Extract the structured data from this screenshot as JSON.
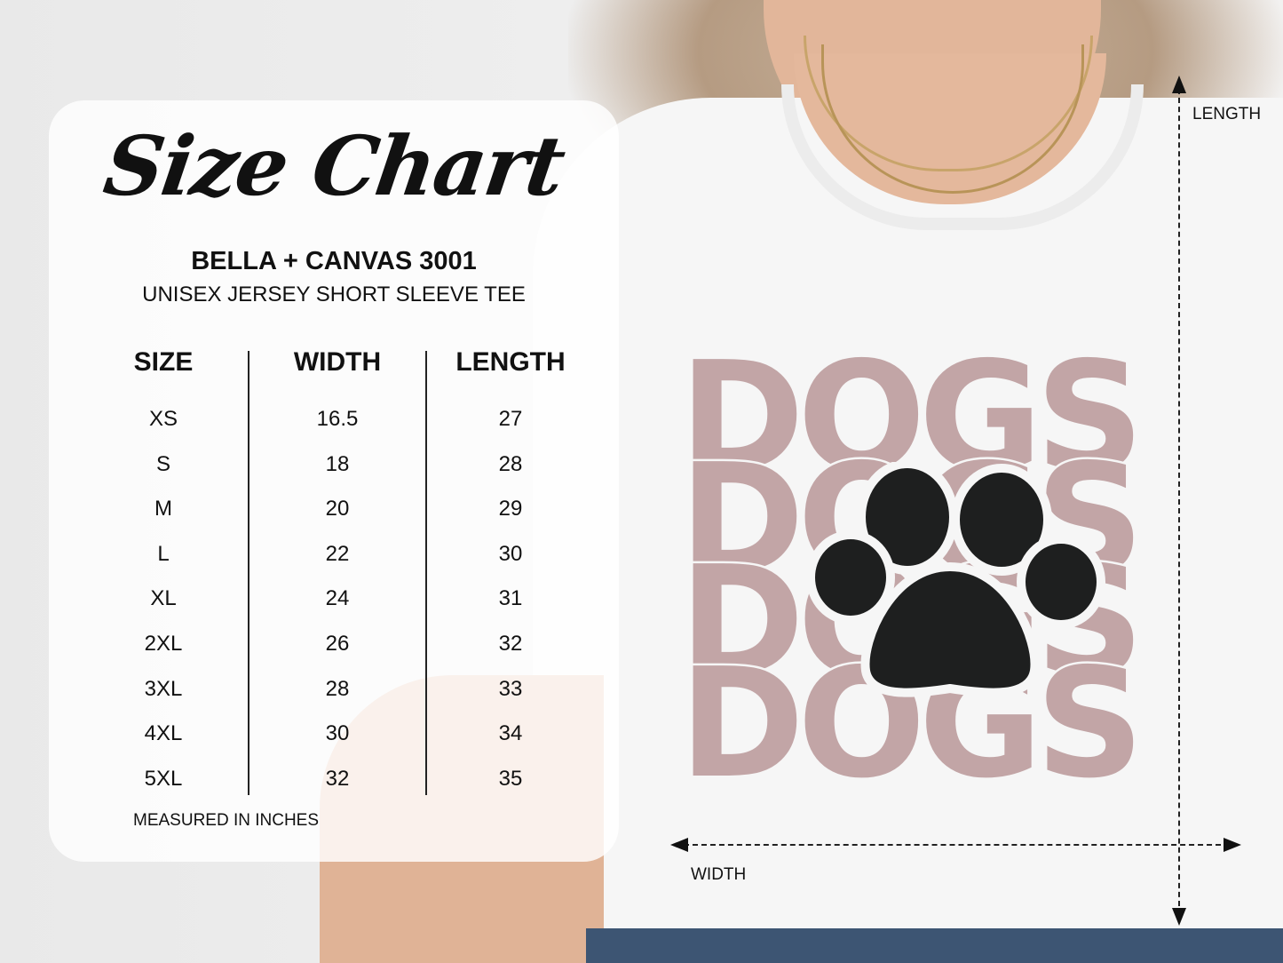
{
  "chart": {
    "title": "Size Chart",
    "brand": "BELLA + CANVAS 3001",
    "subtitle": "UNISEX JERSEY SHORT SLEEVE TEE",
    "headers": [
      "SIZE",
      "WIDTH",
      "LENGTH"
    ],
    "rows": [
      [
        "XS",
        "16.5",
        "27"
      ],
      [
        "S",
        "18",
        "28"
      ],
      [
        "M",
        "20",
        "29"
      ],
      [
        "L",
        "22",
        "30"
      ],
      [
        "XL",
        "24",
        "31"
      ],
      [
        "2XL",
        "26",
        "32"
      ],
      [
        "3XL",
        "28",
        "33"
      ],
      [
        "4XL",
        "30",
        "34"
      ],
      [
        "5XL",
        "32",
        "35"
      ]
    ],
    "note": "MEASURED IN INCHES"
  },
  "measurements": {
    "length_label": "LENGTH",
    "width_label": "WIDTH"
  },
  "shirt_graphic": {
    "text": "DOGS",
    "repeat": 4,
    "icon": "paw-print-icon",
    "print_color": "#c2a5a6",
    "paw_color": "#1e1f1f"
  },
  "colors": {
    "shirt": "#f6f6f6",
    "text": "#111111"
  }
}
